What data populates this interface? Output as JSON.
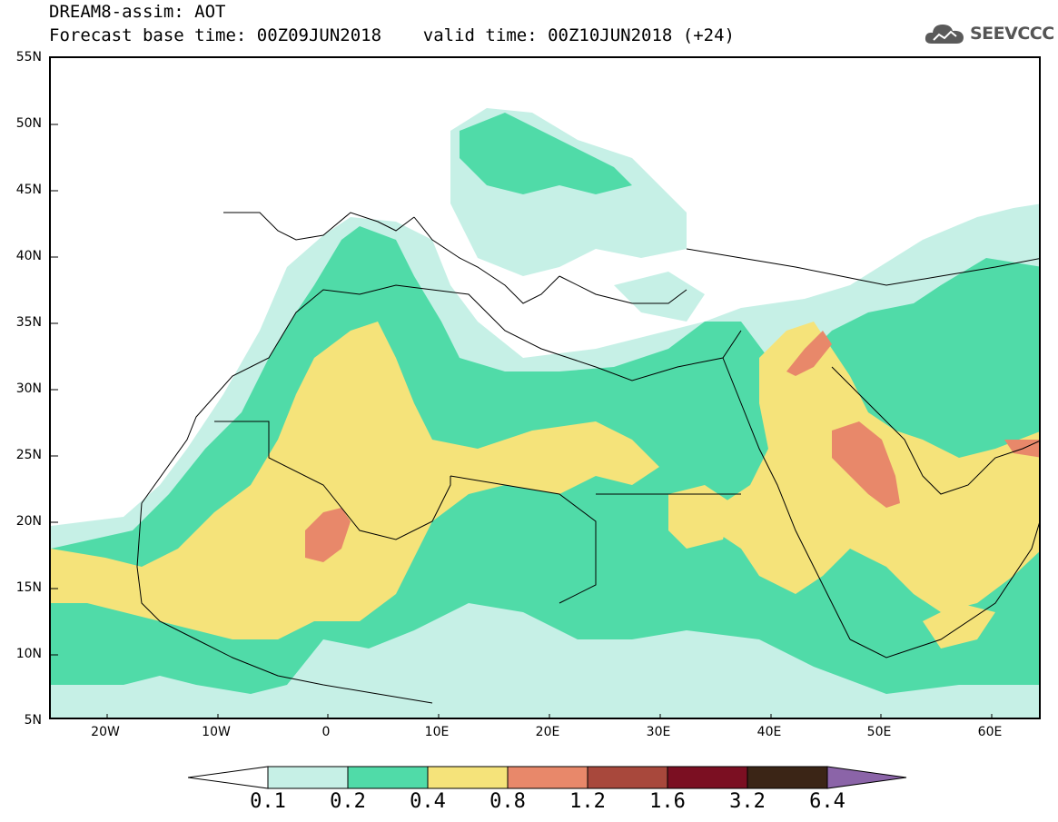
{
  "header": {
    "line1": "DREAM8-assim: AOT",
    "line2": "Forecast base time: 00Z09JUN2018    valid time: 00Z10JUN2018 (+24)"
  },
  "logo": {
    "text": "SEEVCCC",
    "icon": "cloud-icon"
  },
  "map": {
    "latitudes": [
      "55N",
      "50N",
      "45N",
      "40N",
      "35N",
      "30N",
      "25N",
      "20N",
      "15N",
      "10N",
      "5N"
    ],
    "longitudes": [
      "20W",
      "10W",
      "0",
      "10E",
      "20E",
      "30E",
      "40E",
      "50E",
      "60E"
    ]
  },
  "legend": {
    "levels": [
      "0.1",
      "0.2",
      "0.4",
      "0.8",
      "1.2",
      "1.6",
      "3.2",
      "6.4"
    ],
    "colors": [
      "#ffffff",
      "#c6f0e6",
      "#50dba8",
      "#f5e37a",
      "#e8886a",
      "#a8483c",
      "#7b0f22",
      "#3b2516",
      "#8b64a8"
    ]
  }
}
